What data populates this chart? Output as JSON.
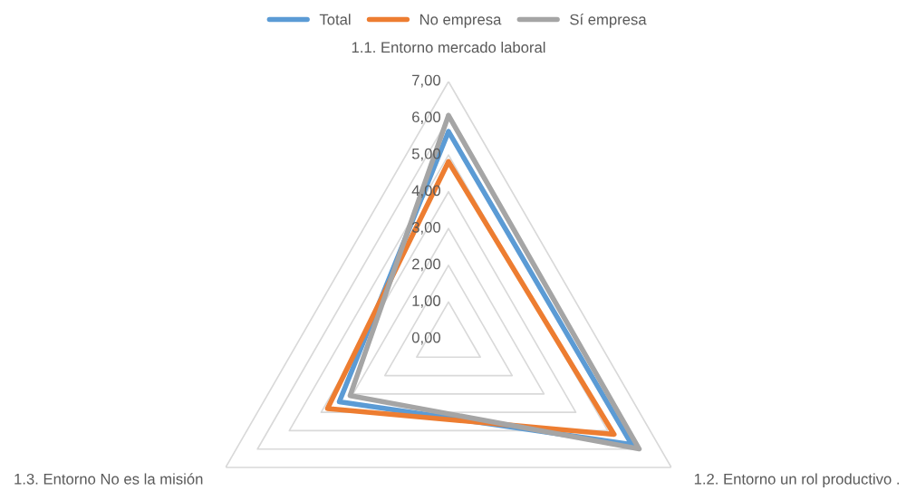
{
  "chart_data": {
    "type": "radar",
    "categories": [
      "1.1. Entorno mercado laboral",
      "1.2. Entorno un rol productivo .",
      "1.3. Entorno No es la misión"
    ],
    "series": [
      {
        "name": "Total",
        "color": "#5b9bd5",
        "values": [
          5.64,
          5.76,
          3.43
        ]
      },
      {
        "name": "No empresa",
        "color": "#ed7d31",
        "values": [
          4.82,
          5.2,
          3.8
        ]
      },
      {
        "name": "Sí empresa",
        "color": "#a5a5a5",
        "values": [
          6.08,
          5.99,
          3.09
        ]
      }
    ],
    "ylim": [
      0,
      7
    ],
    "yticks": [
      {
        "value": 0,
        "label": "0,00"
      },
      {
        "value": 1,
        "label": "1,00"
      },
      {
        "value": 2,
        "label": "2,00"
      },
      {
        "value": 3,
        "label": "3,00"
      },
      {
        "value": 4,
        "label": "4,00"
      },
      {
        "value": 5,
        "label": "5,00"
      },
      {
        "value": 6,
        "label": "6,00"
      },
      {
        "value": 7,
        "label": "7,00"
      }
    ],
    "grid": true,
    "legend": "top",
    "marker": "none",
    "line_style": "solid"
  }
}
